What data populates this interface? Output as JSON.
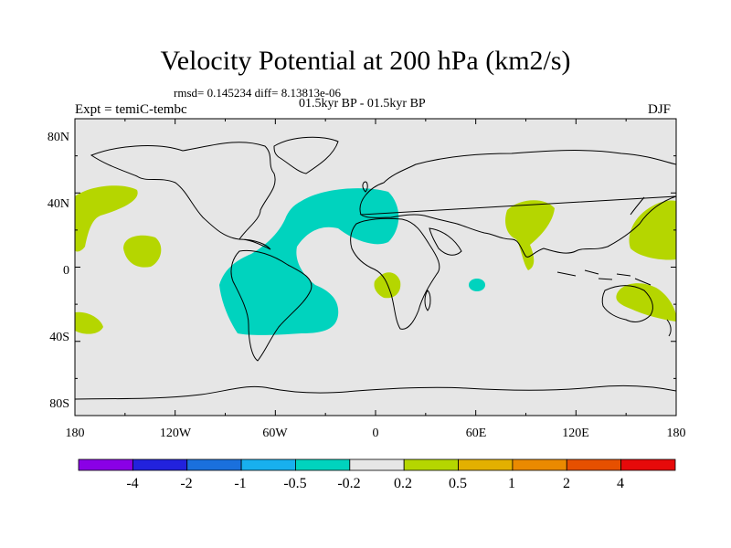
{
  "title": "Velocity Potential at 200 hPa (km2/s)",
  "stats": "rmsd= 0.145234 diff= 8.13813e-06",
  "period": "01.5kyr BP - 01.5kyr BP",
  "expt": "Expt = temiC-tembc",
  "season": "DJF",
  "colors": {
    "background_band": "#e6e6e6",
    "neg_0_5": "#00d3be",
    "pos_0_5": "#b5d600",
    "coast": "#000000"
  },
  "lat_labels": [
    "80N",
    "40N",
    "0",
    "40S",
    "80S"
  ],
  "lon_labels": [
    "180",
    "120W",
    "60W",
    "0",
    "60E",
    "120E",
    "180"
  ],
  "colorbar": {
    "colors": [
      "#8a00e6",
      "#2222dd",
      "#1a70dd",
      "#18b0ee",
      "#00d3be",
      "#e6e6e6",
      "#b5d600",
      "#e3b000",
      "#ea8a00",
      "#e65000",
      "#e60a0a"
    ],
    "labels": [
      "-4",
      "-2",
      "-1",
      "-0.5",
      "-0.2",
      "0.2",
      "0.5",
      "1",
      "2",
      "4"
    ]
  }
}
